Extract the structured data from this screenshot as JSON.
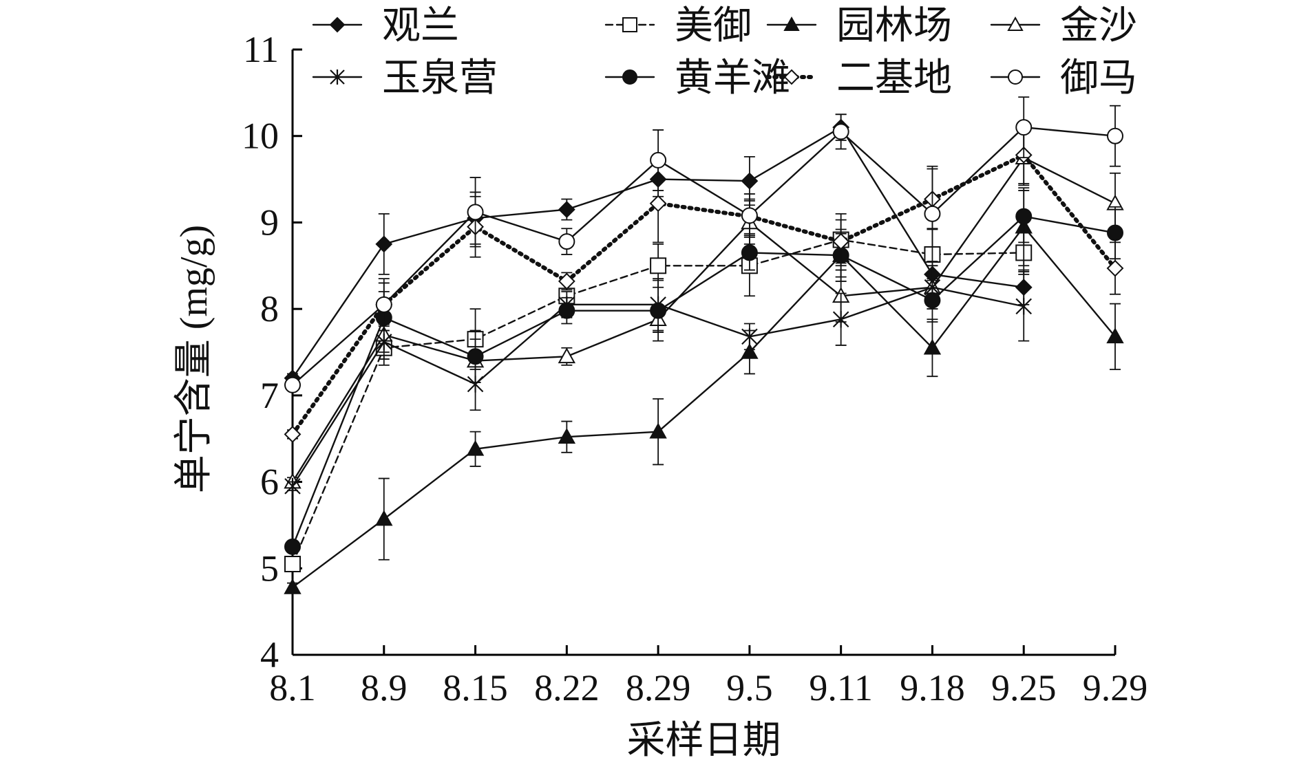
{
  "chart_data": {
    "type": "line",
    "xlabel": "采样日期",
    "ylabel": "单宁含量 (mg/g)",
    "categories": [
      "8.1",
      "8.9",
      "8.15",
      "8.22",
      "8.29",
      "9.5",
      "9.11",
      "9.18",
      "9.25",
      "9.29"
    ],
    "ylim": [
      4,
      11
    ],
    "yticks": [
      4,
      5,
      6,
      7,
      8,
      9,
      10,
      11
    ],
    "grid": false,
    "legend_position": "top",
    "error_bars": true,
    "series": [
      {
        "name": "观兰",
        "marker": "filled-diamond",
        "dash": "solid",
        "values": [
          7.2,
          8.75,
          9.05,
          9.15,
          9.5,
          9.48,
          10.1,
          8.4,
          8.25,
          null
        ],
        "errors": [
          0.05,
          0.35,
          0.3,
          0.12,
          0.2,
          0.28,
          0.15,
          0.2,
          0.2,
          null
        ]
      },
      {
        "name": "美御",
        "marker": "open-square",
        "dash": "dashed",
        "values": [
          5.05,
          7.55,
          7.65,
          8.15,
          8.5,
          8.5,
          8.8,
          8.63,
          8.65,
          null
        ],
        "errors": [
          0.05,
          0.2,
          0.35,
          0.15,
          0.25,
          0.35,
          0.3,
          0.3,
          0.25,
          null
        ]
      },
      {
        "name": "园林场",
        "marker": "filled-triangle",
        "dash": "solid",
        "values": [
          4.78,
          5.57,
          6.38,
          6.52,
          6.58,
          7.5,
          8.62,
          7.55,
          8.95,
          7.68
        ],
        "errors": [
          0.05,
          0.47,
          0.2,
          0.18,
          0.38,
          0.25,
          0.3,
          0.33,
          0.45,
          0.38
        ]
      },
      {
        "name": "金沙",
        "marker": "open-triangle",
        "dash": "solid",
        "values": [
          6.0,
          7.7,
          7.4,
          7.45,
          7.88,
          9.0,
          8.15,
          8.25,
          9.75,
          9.22
        ],
        "errors": [
          0.05,
          0.2,
          0.25,
          0.1,
          0.15,
          0.25,
          0.3,
          0.25,
          0.3,
          0.35
        ]
      },
      {
        "name": "玉泉营",
        "marker": "star",
        "dash": "solid",
        "values": [
          5.95,
          7.62,
          7.13,
          8.05,
          8.05,
          7.68,
          7.88,
          8.25,
          8.03,
          null
        ],
        "errors": [
          0.05,
          0.2,
          0.3,
          0.15,
          0.3,
          0.15,
          0.3,
          0.25,
          0.4,
          null
        ]
      },
      {
        "name": "黄羊滩",
        "marker": "filled-circle",
        "dash": "solid",
        "values": [
          5.25,
          7.9,
          7.45,
          7.98,
          7.98,
          8.65,
          8.62,
          8.1,
          9.07,
          8.88
        ],
        "errors": [
          0.05,
          0.3,
          0.3,
          0.15,
          0.35,
          0.2,
          0.25,
          0.25,
          0.3,
          0.3
        ]
      },
      {
        "name": "二基地",
        "marker": "open-diamond",
        "dash": "dotted",
        "values": [
          6.55,
          8.05,
          8.95,
          8.32,
          9.22,
          9.07,
          8.78,
          9.27,
          9.78,
          8.47
        ],
        "errors": [
          0.05,
          0.25,
          0.35,
          0.1,
          0.45,
          0.2,
          0.25,
          0.35,
          0.35,
          0.3
        ]
      },
      {
        "name": "御马",
        "marker": "open-circle",
        "dash": "solid",
        "values": [
          7.12,
          8.05,
          9.12,
          8.78,
          9.72,
          9.08,
          10.05,
          9.1,
          10.1,
          10.0
        ],
        "errors": [
          0.05,
          0.3,
          0.4,
          0.15,
          0.35,
          0.25,
          0.2,
          0.55,
          0.35,
          0.35
        ]
      }
    ]
  }
}
